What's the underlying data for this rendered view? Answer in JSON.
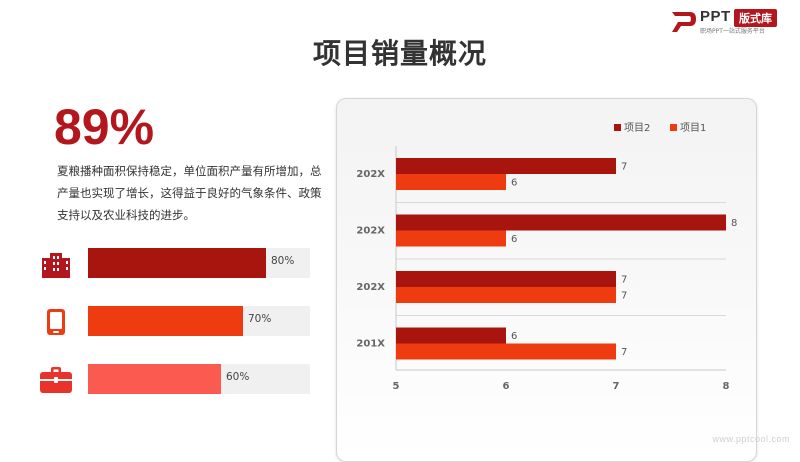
{
  "logo": {
    "ppt_text": "PPT",
    "badge_text": "版式库",
    "subtitle": "职场PPT一站式服务平台",
    "brand_color": "#b3171d"
  },
  "page_title": "项目销量概况",
  "highlight": {
    "percent": "89%",
    "description": "夏粮播种面积保持稳定，单位面积产量有所增加，总产量也实现了增长，这得益于良好的气象条件、政策支持以及农业科技的进步。"
  },
  "progress_items": [
    {
      "icon": "building-icon",
      "value": 0.8,
      "label": "80%",
      "color": "#a8140e"
    },
    {
      "icon": "tablet-icon",
      "value": 0.7,
      "label": "70%",
      "color": "#ee3b0f"
    },
    {
      "icon": "briefcase-icon",
      "value": 0.6,
      "label": "60%",
      "color": "#fa5a50"
    }
  ],
  "chart_data": {
    "type": "bar",
    "orientation": "horizontal",
    "categories": [
      "202X",
      "202X",
      "202X",
      "201X"
    ],
    "series": [
      {
        "name": "项目2",
        "values": [
          7,
          8,
          7,
          6
        ],
        "color": "#a8140e"
      },
      {
        "name": "项目1",
        "values": [
          6,
          6,
          7,
          7
        ],
        "color": "#ee3b0f"
      }
    ],
    "xlim": [
      5,
      8
    ],
    "x_ticks": [
      "5",
      "6",
      "7",
      "8"
    ],
    "grid": true,
    "legend_position": "top-right",
    "data_labels": true
  },
  "watermark": "www.pptcool.com"
}
